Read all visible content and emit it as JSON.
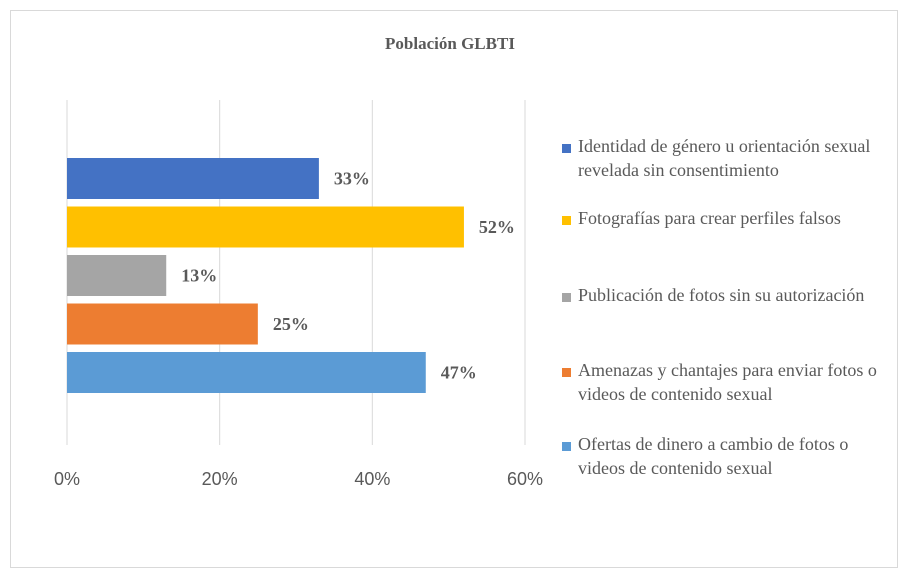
{
  "chart_data": {
    "type": "bar",
    "orientation": "horizontal",
    "title": "Población GLBTI",
    "series": [
      {
        "name": "Identidad de género u orientación sexual revelada sin consentimiento",
        "color": "#4472c4",
        "values": [
          33
        ],
        "value_labels": [
          "33%"
        ]
      },
      {
        "name": "Fotografías para crear perfiles falsos",
        "color": "#ffc000",
        "values": [
          52
        ],
        "value_labels": [
          "52%"
        ]
      },
      {
        "name": "Publicación de fotos sin su autorización",
        "color": "#a5a5a5",
        "values": [
          13
        ],
        "value_labels": [
          "13%"
        ]
      },
      {
        "name": "Amenazas y chantajes para enviar fotos  o videos de contenido sexual",
        "color": "#ed7d31",
        "values": [
          25
        ],
        "value_labels": [
          "25%"
        ]
      },
      {
        "name": "Ofertas de dinero a cambio de fotos o videos de contenido sexual",
        "color": "#5b9bd5",
        "values": [
          47
        ],
        "value_labels": [
          "47%"
        ]
      }
    ],
    "xlim": [
      0,
      60
    ],
    "xticks": [
      {
        "value": 0,
        "label": "0%"
      },
      {
        "value": 20,
        "label": "20%"
      },
      {
        "value": 40,
        "label": "40%"
      },
      {
        "value": 60,
        "label": "60%"
      }
    ],
    "grid": true,
    "legend": "right"
  }
}
